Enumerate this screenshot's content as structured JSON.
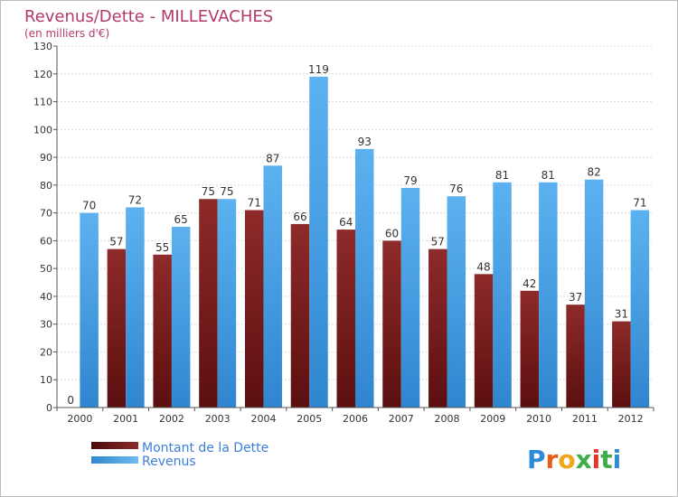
{
  "chart_data": {
    "type": "bar",
    "title": "Revenus/Dette - MILLEVACHES",
    "subtitle": "(en milliers d'€)",
    "categories": [
      "2000",
      "2001",
      "2002",
      "2003",
      "2004",
      "2005",
      "2006",
      "2007",
      "2008",
      "2009",
      "2010",
      "2011",
      "2012"
    ],
    "series": [
      {
        "name": "Montant de la Dette",
        "color": "#7a1e1e",
        "values": [
          0,
          57,
          55,
          75,
          71,
          66,
          64,
          60,
          57,
          48,
          42,
          37,
          31
        ]
      },
      {
        "name": "Revenus",
        "color": "#4aa3e8",
        "values": [
          70,
          72,
          65,
          75,
          87,
          119,
          93,
          79,
          76,
          81,
          81,
          82,
          71
        ]
      }
    ],
    "yticks": [
      "0",
      "10",
      "20",
      "30",
      "40",
      "50",
      "60",
      "70",
      "80",
      "90",
      "100",
      "110",
      "120",
      "130"
    ],
    "ylim": [
      0,
      130
    ],
    "xlabel": "",
    "ylabel": "",
    "grid": true,
    "legend_position": "bottom-left"
  },
  "logo": {
    "letters": [
      "P",
      "r",
      "o",
      "x",
      "i",
      "t",
      "i"
    ],
    "colors": [
      "#2e8bd6",
      "#e85d1a",
      "#f2a51a",
      "#3fae49",
      "#e8342a",
      "#3fae49",
      "#2e8bd6"
    ]
  }
}
